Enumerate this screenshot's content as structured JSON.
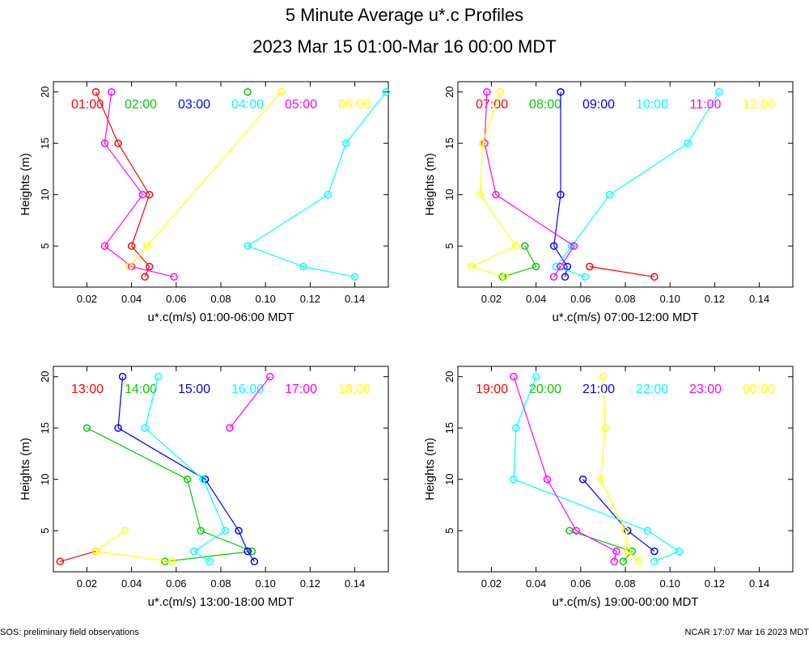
{
  "title": "5 Minute Average u*.c Profiles",
  "subtitle": "2023 Mar 15 01:00-Mar 16 00:00 MDT",
  "footer_left": "SOS: preliminary field observations",
  "footer_right": "NCAR 17:07 Mar 16 2023 MDT",
  "chart_data": [
    {
      "type": "scatter",
      "xlabel": "u*.c(m/s) 01:00-06:00 MDT",
      "ylabel": "Heights (m)",
      "xlim": [
        0.005,
        0.155
      ],
      "ylim": [
        1,
        21
      ],
      "xticks": [
        "0.02",
        "0.04",
        "0.06",
        "0.08",
        "0.10",
        "0.12",
        "0.14"
      ],
      "yticks": [
        "5",
        "10",
        "15",
        "20"
      ],
      "series": [
        {
          "name": "01:00",
          "color": "#ff0000",
          "points": [
            [
              0.046,
              2
            ],
            [
              0.048,
              3
            ],
            [
              0.04,
              5
            ],
            [
              0.048,
              10
            ],
            [
              0.034,
              15
            ],
            [
              0.024,
              20
            ]
          ]
        },
        {
          "name": "02:00",
          "color": "#00cc00",
          "points": [
            [
              0.092,
              20
            ]
          ]
        },
        {
          "name": "03:00",
          "color": "#0000ff",
          "points": []
        },
        {
          "name": "04:00",
          "color": "#00ffff",
          "points": [
            [
              0.14,
              2
            ],
            [
              0.117,
              3
            ],
            [
              0.092,
              5
            ],
            [
              0.128,
              10
            ],
            [
              0.136,
              15
            ],
            [
              0.154,
              20
            ]
          ]
        },
        {
          "name": "05:00",
          "color": "#ff00ff",
          "points": [
            [
              0.059,
              2
            ],
            [
              0.04,
              3
            ],
            [
              0.028,
              5
            ],
            [
              0.045,
              10
            ],
            [
              0.028,
              15
            ],
            [
              0.031,
              20
            ]
          ]
        },
        {
          "name": "06:00",
          "color": "#ffff00",
          "points": [
            [
              0.039,
              3
            ],
            [
              0.047,
              5
            ],
            [
              0.107,
              20
            ]
          ]
        }
      ]
    },
    {
      "type": "scatter",
      "xlabel": "u*.c(m/s) 07:00-12:00 MDT",
      "ylabel": "Heights (m)",
      "xlim": [
        0.005,
        0.155
      ],
      "ylim": [
        1,
        21
      ],
      "xticks": [
        "0.02",
        "0.04",
        "0.06",
        "0.08",
        "0.10",
        "0.12",
        "0.14"
      ],
      "yticks": [
        "5",
        "10",
        "15",
        "20"
      ],
      "series": [
        {
          "name": "07:00",
          "color": "#ff0000",
          "points": [
            [
              0.093,
              2
            ],
            [
              0.064,
              3
            ]
          ]
        },
        {
          "name": "08:00",
          "color": "#00cc00",
          "points": [
            [
              0.025,
              2
            ],
            [
              0.04,
              3
            ],
            [
              0.035,
              5
            ]
          ]
        },
        {
          "name": "09:00",
          "color": "#0000ff",
          "points": [
            [
              0.053,
              2
            ],
            [
              0.054,
              3
            ],
            [
              0.048,
              5
            ],
            [
              0.051,
              10
            ],
            [
              0.051,
              20
            ]
          ]
        },
        {
          "name": "10:00",
          "color": "#00ffff",
          "points": [
            [
              0.062,
              2
            ],
            [
              0.049,
              3
            ],
            [
              0.056,
              5
            ],
            [
              0.073,
              10
            ],
            [
              0.108,
              15
            ],
            [
              0.122,
              20
            ]
          ]
        },
        {
          "name": "11:00",
          "color": "#ff00ff",
          "points": [
            [
              0.048,
              2
            ],
            [
              0.051,
              3
            ],
            [
              0.057,
              5
            ],
            [
              0.022,
              10
            ],
            [
              0.017,
              15
            ],
            [
              0.018,
              20
            ]
          ]
        },
        {
          "name": "12:00",
          "color": "#ffff00",
          "points": [
            [
              0.026,
              2
            ],
            [
              0.011,
              3
            ],
            [
              0.031,
              5
            ],
            [
              0.015,
              10
            ],
            [
              0.016,
              15
            ],
            [
              0.024,
              20
            ]
          ]
        }
      ]
    },
    {
      "type": "scatter",
      "xlabel": "u*.c(m/s) 13:00-18:00 MDT",
      "ylabel": "Heights (m)",
      "xlim": [
        0.005,
        0.155
      ],
      "ylim": [
        1,
        21
      ],
      "xticks": [
        "0.02",
        "0.04",
        "0.06",
        "0.08",
        "0.10",
        "0.12",
        "0.14"
      ],
      "yticks": [
        "5",
        "10",
        "15",
        "20"
      ],
      "series": [
        {
          "name": "13:00",
          "color": "#ff0000",
          "points": [
            [
              0.008,
              2
            ],
            [
              0.024,
              3
            ]
          ]
        },
        {
          "name": "14:00",
          "color": "#00cc00",
          "points": [
            [
              0.055,
              2
            ],
            [
              0.094,
              3
            ],
            [
              0.071,
              5
            ],
            [
              0.065,
              10
            ],
            [
              0.02,
              15
            ]
          ]
        },
        {
          "name": "15:00",
          "color": "#0000ff",
          "points": [
            [
              0.095,
              2
            ],
            [
              0.092,
              3
            ],
            [
              0.088,
              5
            ],
            [
              0.073,
              10
            ],
            [
              0.034,
              15
            ],
            [
              0.036,
              20
            ]
          ]
        },
        {
          "name": "16:00",
          "color": "#00ffff",
          "points": [
            [
              0.075,
              2
            ],
            [
              0.068,
              3
            ],
            [
              0.082,
              5
            ],
            [
              0.072,
              10
            ],
            [
              0.046,
              15
            ],
            [
              0.052,
              20
            ]
          ]
        },
        {
          "name": "17:00",
          "color": "#ff00ff",
          "points": [
            [
              0.084,
              15
            ],
            [
              0.102,
              20
            ]
          ]
        },
        {
          "name": "18:00",
          "color": "#ffff00",
          "points": [
            [
              0.058,
              2
            ],
            [
              0.024,
              3
            ],
            [
              0.037,
              5
            ]
          ]
        }
      ]
    },
    {
      "type": "scatter",
      "xlabel": "u*.c(m/s) 19:00-00:00 MDT",
      "ylabel": "Heights (m)",
      "xlim": [
        0.005,
        0.155
      ],
      "ylim": [
        1,
        21
      ],
      "xticks": [
        "0.02",
        "0.04",
        "0.06",
        "0.08",
        "0.10",
        "0.12",
        "0.14"
      ],
      "yticks": [
        "5",
        "10",
        "15",
        "20"
      ],
      "series": [
        {
          "name": "19:00",
          "color": "#ff0000",
          "points": []
        },
        {
          "name": "20:00",
          "color": "#00cc00",
          "points": [
            [
              0.079,
              2
            ],
            [
              0.083,
              3
            ],
            [
              0.055,
              5
            ]
          ]
        },
        {
          "name": "21:00",
          "color": "#0000ff",
          "points": [
            [
              0.093,
              3
            ],
            [
              0.081,
              5
            ],
            [
              0.061,
              10
            ]
          ]
        },
        {
          "name": "22:00",
          "color": "#00ffff",
          "points": [
            [
              0.093,
              2
            ],
            [
              0.104,
              3
            ],
            [
              0.09,
              5
            ],
            [
              0.03,
              10
            ],
            [
              0.031,
              15
            ],
            [
              0.04,
              20
            ]
          ]
        },
        {
          "name": "23:00",
          "color": "#ff00ff",
          "points": [
            [
              0.075,
              2
            ],
            [
              0.076,
              3
            ],
            [
              0.058,
              5
            ],
            [
              0.045,
              10
            ],
            [
              0.03,
              20
            ]
          ]
        },
        {
          "name": "00:00",
          "color": "#ffff00",
          "points": [
            [
              0.086,
              2
            ],
            [
              0.081,
              3
            ],
            [
              0.08,
              5
            ],
            [
              0.069,
              10
            ],
            [
              0.071,
              15
            ],
            [
              0.07,
              20
            ]
          ]
        }
      ]
    }
  ]
}
